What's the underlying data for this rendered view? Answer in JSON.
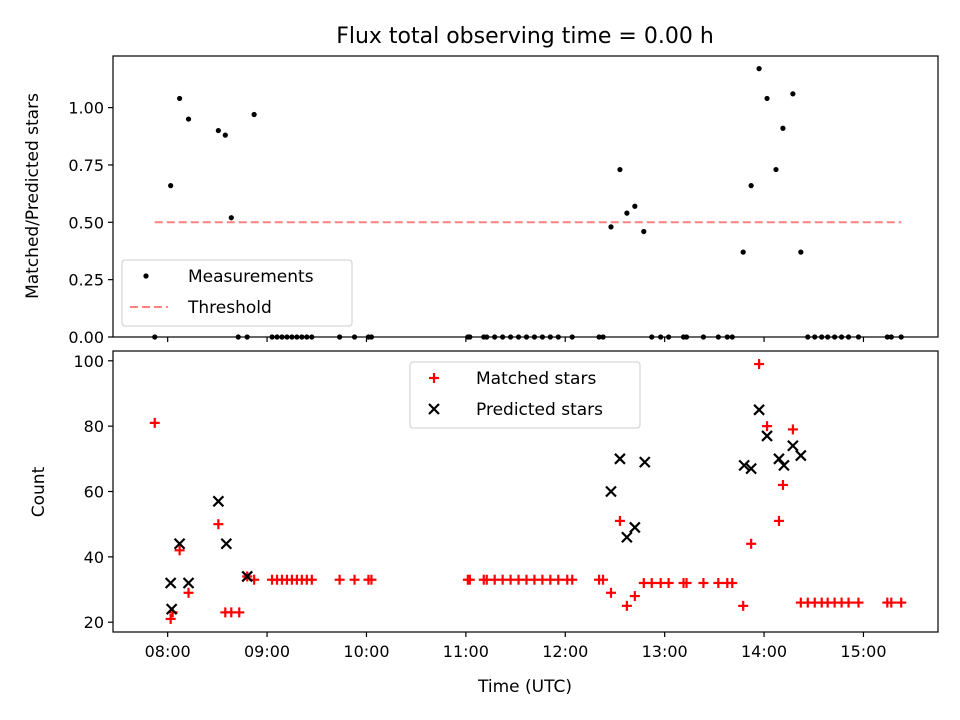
{
  "chart_data": [
    {
      "type": "scatter",
      "title": "Flux total observing time = 0.00 h",
      "xlabel": "",
      "ylabel": "Matched/Predicted stars",
      "xlim": [
        7.45,
        15.75
      ],
      "ylim": [
        0.0,
        1.225
      ],
      "yticks": [
        0.0,
        0.25,
        0.5,
        0.75,
        1.0
      ],
      "ytick_labels": [
        "0.00",
        "0.25",
        "0.50",
        "0.75",
        "1.00"
      ],
      "xticks": [
        8,
        9,
        10,
        11,
        12,
        13,
        14,
        15
      ],
      "show_xtick_labels": false,
      "legend_position": "lower-left",
      "series": [
        {
          "name": "Measurements",
          "marker": "dot",
          "color": "#000000",
          "x": [
            7.87,
            8.03,
            8.12,
            8.21,
            8.51,
            8.58,
            8.64,
            8.71,
            8.8,
            8.87,
            9.05,
            9.1,
            9.15,
            9.2,
            9.25,
            9.3,
            9.35,
            9.4,
            9.45,
            9.73,
            9.88,
            10.02,
            10.05,
            11.02,
            11.04,
            11.18,
            11.21,
            11.29,
            11.37,
            11.45,
            11.53,
            11.61,
            11.69,
            11.77,
            11.85,
            11.93,
            12.07,
            12.34,
            12.38,
            12.46,
            12.55,
            12.62,
            12.7,
            12.79,
            12.87,
            12.96,
            13.04,
            13.19,
            13.22,
            13.39,
            13.54,
            13.63,
            13.68,
            13.79,
            13.87,
            13.95,
            14.03,
            14.12,
            14.19,
            14.29,
            14.37,
            14.44,
            14.51,
            14.58,
            14.64,
            14.71,
            14.78,
            14.85,
            14.95,
            15.24,
            15.28,
            15.38
          ],
          "y": [
            0.0,
            0.66,
            1.04,
            0.95,
            0.9,
            0.88,
            0.52,
            0.0,
            0.0,
            0.97,
            0.0,
            0.0,
            0.0,
            0.0,
            0.0,
            0.0,
            0.0,
            0.0,
            0.0,
            0.0,
            0.0,
            0.0,
            0.0,
            0.0,
            0.0,
            0.0,
            0.0,
            0.0,
            0.0,
            0.0,
            0.0,
            0.0,
            0.0,
            0.0,
            0.0,
            0.0,
            0.0,
            0.0,
            0.0,
            0.48,
            0.73,
            0.54,
            0.57,
            0.46,
            0.0,
            0.0,
            0.0,
            0.0,
            0.0,
            0.0,
            0.0,
            0.0,
            0.0,
            0.37,
            0.66,
            1.17,
            1.04,
            0.73,
            0.91,
            1.06,
            0.37,
            0.0,
            0.0,
            0.0,
            0.0,
            0.0,
            0.0,
            0.0,
            0.0,
            0.0,
            0.0,
            0.0
          ]
        },
        {
          "name": "Threshold",
          "marker": "dashed-line",
          "color": "#ff8080",
          "x": [
            7.87,
            15.38
          ],
          "y": [
            0.5,
            0.5
          ]
        }
      ]
    },
    {
      "type": "scatter",
      "title": "",
      "xlabel": "Time (UTC)",
      "ylabel": "Count",
      "xlim": [
        7.45,
        15.75
      ],
      "ylim": [
        17,
        103
      ],
      "yticks": [
        20,
        40,
        60,
        80,
        100
      ],
      "ytick_labels": [
        "20",
        "40",
        "60",
        "80",
        "100"
      ],
      "xticks": [
        8,
        9,
        10,
        11,
        12,
        13,
        14,
        15
      ],
      "xtick_labels": [
        "08:00",
        "09:00",
        "10:00",
        "11:00",
        "12:00",
        "13:00",
        "14:00",
        "15:00"
      ],
      "legend_position": "upper-center",
      "series": [
        {
          "name": "Matched stars",
          "marker": "plus",
          "color": "#ff0000",
          "x": [
            7.87,
            8.03,
            8.05,
            8.12,
            8.21,
            8.51,
            8.58,
            8.64,
            8.72,
            8.8,
            8.87,
            9.05,
            9.1,
            9.15,
            9.2,
            9.25,
            9.3,
            9.35,
            9.4,
            9.45,
            9.73,
            9.88,
            10.02,
            10.05,
            11.02,
            11.04,
            11.18,
            11.21,
            11.29,
            11.37,
            11.45,
            11.53,
            11.61,
            11.69,
            11.77,
            11.85,
            11.93,
            12.02,
            12.07,
            12.34,
            12.38,
            12.46,
            12.55,
            12.62,
            12.7,
            12.79,
            12.87,
            12.96,
            13.04,
            13.19,
            13.22,
            13.39,
            13.54,
            13.63,
            13.68,
            13.79,
            13.87,
            13.95,
            14.03,
            14.15,
            14.19,
            14.29,
            14.37,
            14.44,
            14.51,
            14.58,
            14.64,
            14.71,
            14.78,
            14.85,
            14.95,
            15.24,
            15.28,
            15.38
          ],
          "y": [
            81,
            21,
            23,
            42,
            29,
            50,
            23,
            23,
            23,
            34,
            33,
            33,
            33,
            33,
            33,
            33,
            33,
            33,
            33,
            33,
            33,
            33,
            33,
            33,
            33,
            33,
            33,
            33,
            33,
            33,
            33,
            33,
            33,
            33,
            33,
            33,
            33,
            33,
            33,
            33,
            33,
            29,
            51,
            25,
            28,
            32,
            32,
            32,
            32,
            32,
            32,
            32,
            32,
            32,
            32,
            25,
            44,
            99,
            80,
            51,
            62,
            79,
            26,
            26,
            26,
            26,
            26,
            26,
            26,
            26,
            26,
            26,
            26,
            26
          ]
        },
        {
          "name": "Predicted stars",
          "marker": "x",
          "color": "#000000",
          "x": [
            8.03,
            8.04,
            8.12,
            8.21,
            8.51,
            8.59,
            8.8,
            12.46,
            12.55,
            12.62,
            12.7,
            12.8,
            13.8,
            13.87,
            13.95,
            14.03,
            14.15,
            14.2,
            14.29,
            14.37
          ],
          "y": [
            32,
            24,
            44,
            32,
            57,
            44,
            34,
            60,
            70,
            46,
            49,
            69,
            68,
            67,
            85,
            77,
            70,
            68,
            74,
            71
          ]
        }
      ]
    }
  ]
}
